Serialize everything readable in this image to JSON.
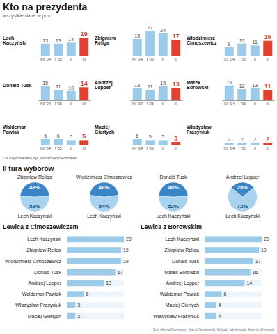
{
  "title": "Kto na prezydenta",
  "subtitle": "wszystkie dane w proc.",
  "footnote": "* w lutym badany był Janusz Wojciechowski",
  "section_title": "II tura wyborów",
  "source": "Fot. Michał Sadowski, Jakub Ostałowski, Wojtek Jakubowski, Marcin Wziontek",
  "chart_data": [
    {
      "type": "bar",
      "title": "Lech Kaczyński",
      "categories": [
        "XII '04",
        "I '05",
        "II",
        "III"
      ],
      "values": [
        13,
        13,
        14,
        19
      ],
      "colors": [
        "#9ccbea",
        "#9ccbea",
        "#9ccbea",
        "#e2412f"
      ],
      "ylim": [
        0,
        30
      ],
      "tick_labels": "x",
      "data_labels": true,
      "grid": false
    },
    {
      "type": "bar",
      "title": "Zbigniew Religa",
      "categories": [
        "XII '04",
        "I '05",
        "II",
        "III"
      ],
      "values": [
        18,
        27,
        24,
        17
      ],
      "colors": [
        "#9ccbea",
        "#9ccbea",
        "#9ccbea",
        "#e2412f"
      ],
      "ylim": [
        0,
        30
      ],
      "tick_labels": "x",
      "data_labels": true,
      "grid": false
    },
    {
      "type": "bar",
      "title": "Włodzimierz Cimoszewicz",
      "categories": [
        "XII '04",
        "I '05",
        "II",
        "III"
      ],
      "values": [
        9,
        13,
        11,
        16
      ],
      "colors": [
        "#9ccbea",
        "#9ccbea",
        "#9ccbea",
        "#e2412f"
      ],
      "ylim": [
        0,
        30
      ],
      "tick_labels": "x",
      "data_labels": true,
      "grid": false
    },
    {
      "type": "bar",
      "title": "Donald Tusk",
      "categories": [
        "XII '04",
        "I '05",
        "II",
        "III"
      ],
      "values": [
        15,
        11,
        10,
        14
      ],
      "colors": [
        "#9ccbea",
        "#9ccbea",
        "#9ccbea",
        "#e2412f"
      ],
      "ylim": [
        0,
        30
      ],
      "tick_labels": "x",
      "data_labels": true,
      "grid": false
    },
    {
      "type": "bar",
      "title": "Andrzej Lepper",
      "categories": [
        "XII '04",
        "I '05",
        "II",
        "III"
      ],
      "values": [
        13,
        11,
        15,
        13
      ],
      "colors": [
        "#9ccbea",
        "#9ccbea",
        "#9ccbea",
        "#e2412f"
      ],
      "ylim": [
        0,
        30
      ],
      "tick_labels": "x",
      "data_labels": true,
      "grid": false
    },
    {
      "type": "bar",
      "title": "Marek Borowski",
      "categories": [
        "XII '04",
        "I '05",
        "II",
        "III"
      ],
      "values": [
        16,
        12,
        13,
        11
      ],
      "colors": [
        "#9ccbea",
        "#9ccbea",
        "#9ccbea",
        "#e2412f"
      ],
      "ylim": [
        0,
        30
      ],
      "tick_labels": "x",
      "data_labels": true,
      "grid": false
    },
    {
      "type": "bar",
      "title": "Waldemar Pawlak",
      "categories": [
        "XII '04",
        "I '05",
        "II",
        "III"
      ],
      "values": [
        6,
        6,
        5,
        5
      ],
      "colors": [
        "#9ccbea",
        "#9ccbea",
        "#9ccbea",
        "#e2412f"
      ],
      "ylim": [
        0,
        30
      ],
      "tick_labels": "x",
      "data_labels": true,
      "grid": false
    },
    {
      "type": "bar",
      "title": "Maciej Giertych",
      "categories": [
        "XII '04",
        "I '05",
        "II",
        "III"
      ],
      "values": [
        6,
        5,
        5,
        3
      ],
      "colors": [
        "#9ccbea",
        "#9ccbea",
        "#9ccbea",
        "#e2412f"
      ],
      "ylim": [
        0,
        30
      ],
      "tick_labels": "x",
      "data_labels": true,
      "grid": false
    },
    {
      "type": "bar",
      "title": "Władysław Frasyniuk",
      "categories": [
        "XII '04",
        "I '05",
        "II",
        "III"
      ],
      "values": [
        2,
        2,
        2,
        2
      ],
      "colors": [
        "#9ccbea",
        "#9ccbea",
        "#9ccbea",
        "#e2412f"
      ],
      "ylim": [
        0,
        30
      ],
      "tick_labels": "x",
      "data_labels": true,
      "grid": false
    },
    {
      "type": "pie",
      "categories": [
        "Lech Kaczyński",
        "Zbigniew Religa"
      ],
      "values": [
        52,
        48
      ],
      "value_labels": [
        "52%",
        "48%"
      ],
      "colors": [
        "#a8d2ee",
        "#3b86c6"
      ],
      "data_labels": true
    },
    {
      "type": "pie",
      "categories": [
        "Lech Kaczyński",
        "Włodzimierz Cimoszewicz"
      ],
      "values": [
        54,
        46
      ],
      "value_labels": [
        "54%",
        "46%"
      ],
      "colors": [
        "#a8d2ee",
        "#3b86c6"
      ],
      "data_labels": true
    },
    {
      "type": "pie",
      "categories": [
        "Lech Kaczyński",
        "Donald Tusk"
      ],
      "values": [
        52,
        48
      ],
      "value_labels": [
        "52%",
        "48%"
      ],
      "colors": [
        "#a8d2ee",
        "#3b86c6"
      ],
      "data_labels": true
    },
    {
      "type": "pie",
      "categories": [
        "Lech Kaczyński",
        "Andrzej Lepper"
      ],
      "values": [
        72,
        28
      ],
      "value_labels": [
        "72%",
        "28%"
      ],
      "colors": [
        "#a8d2ee",
        "#3b86c6"
      ],
      "data_labels": true
    },
    {
      "type": "bar",
      "orientation": "horizontal",
      "title": "Lewica z Cimoszewiczem",
      "categories": [
        "Lech Kaczyński",
        "Zbigniew Religa",
        "Włodzimierz Cimoszewicz",
        "Donald Tusk",
        "Andrzej Lepper",
        "Waldemar Pawlak",
        "Władysław Frasyniuk",
        "Maciej Giertych"
      ],
      "values": [
        20,
        19,
        19,
        17,
        13,
        6,
        3,
        3
      ],
      "color": "#9ccbea",
      "xlim": [
        0,
        20
      ],
      "tick_labels": "y",
      "data_labels": true,
      "grid": false
    },
    {
      "type": "bar",
      "orientation": "horizontal",
      "title": "Lewica z Borowskim",
      "categories": [
        "Lech Kaczyński",
        "Zbigniew Religa",
        "Donald Tusk",
        "Marek Borowski",
        "Andrzej Lepper",
        "Waldemar Pawlak",
        "Maciej Giertych",
        "Władysław Frasyniuk"
      ],
      "values": [
        20,
        19,
        17,
        16,
        14,
        6,
        4,
        4
      ],
      "color": "#9ccbea",
      "xlim": [
        0,
        20
      ],
      "tick_labels": "y",
      "data_labels": true,
      "grid": false
    }
  ]
}
